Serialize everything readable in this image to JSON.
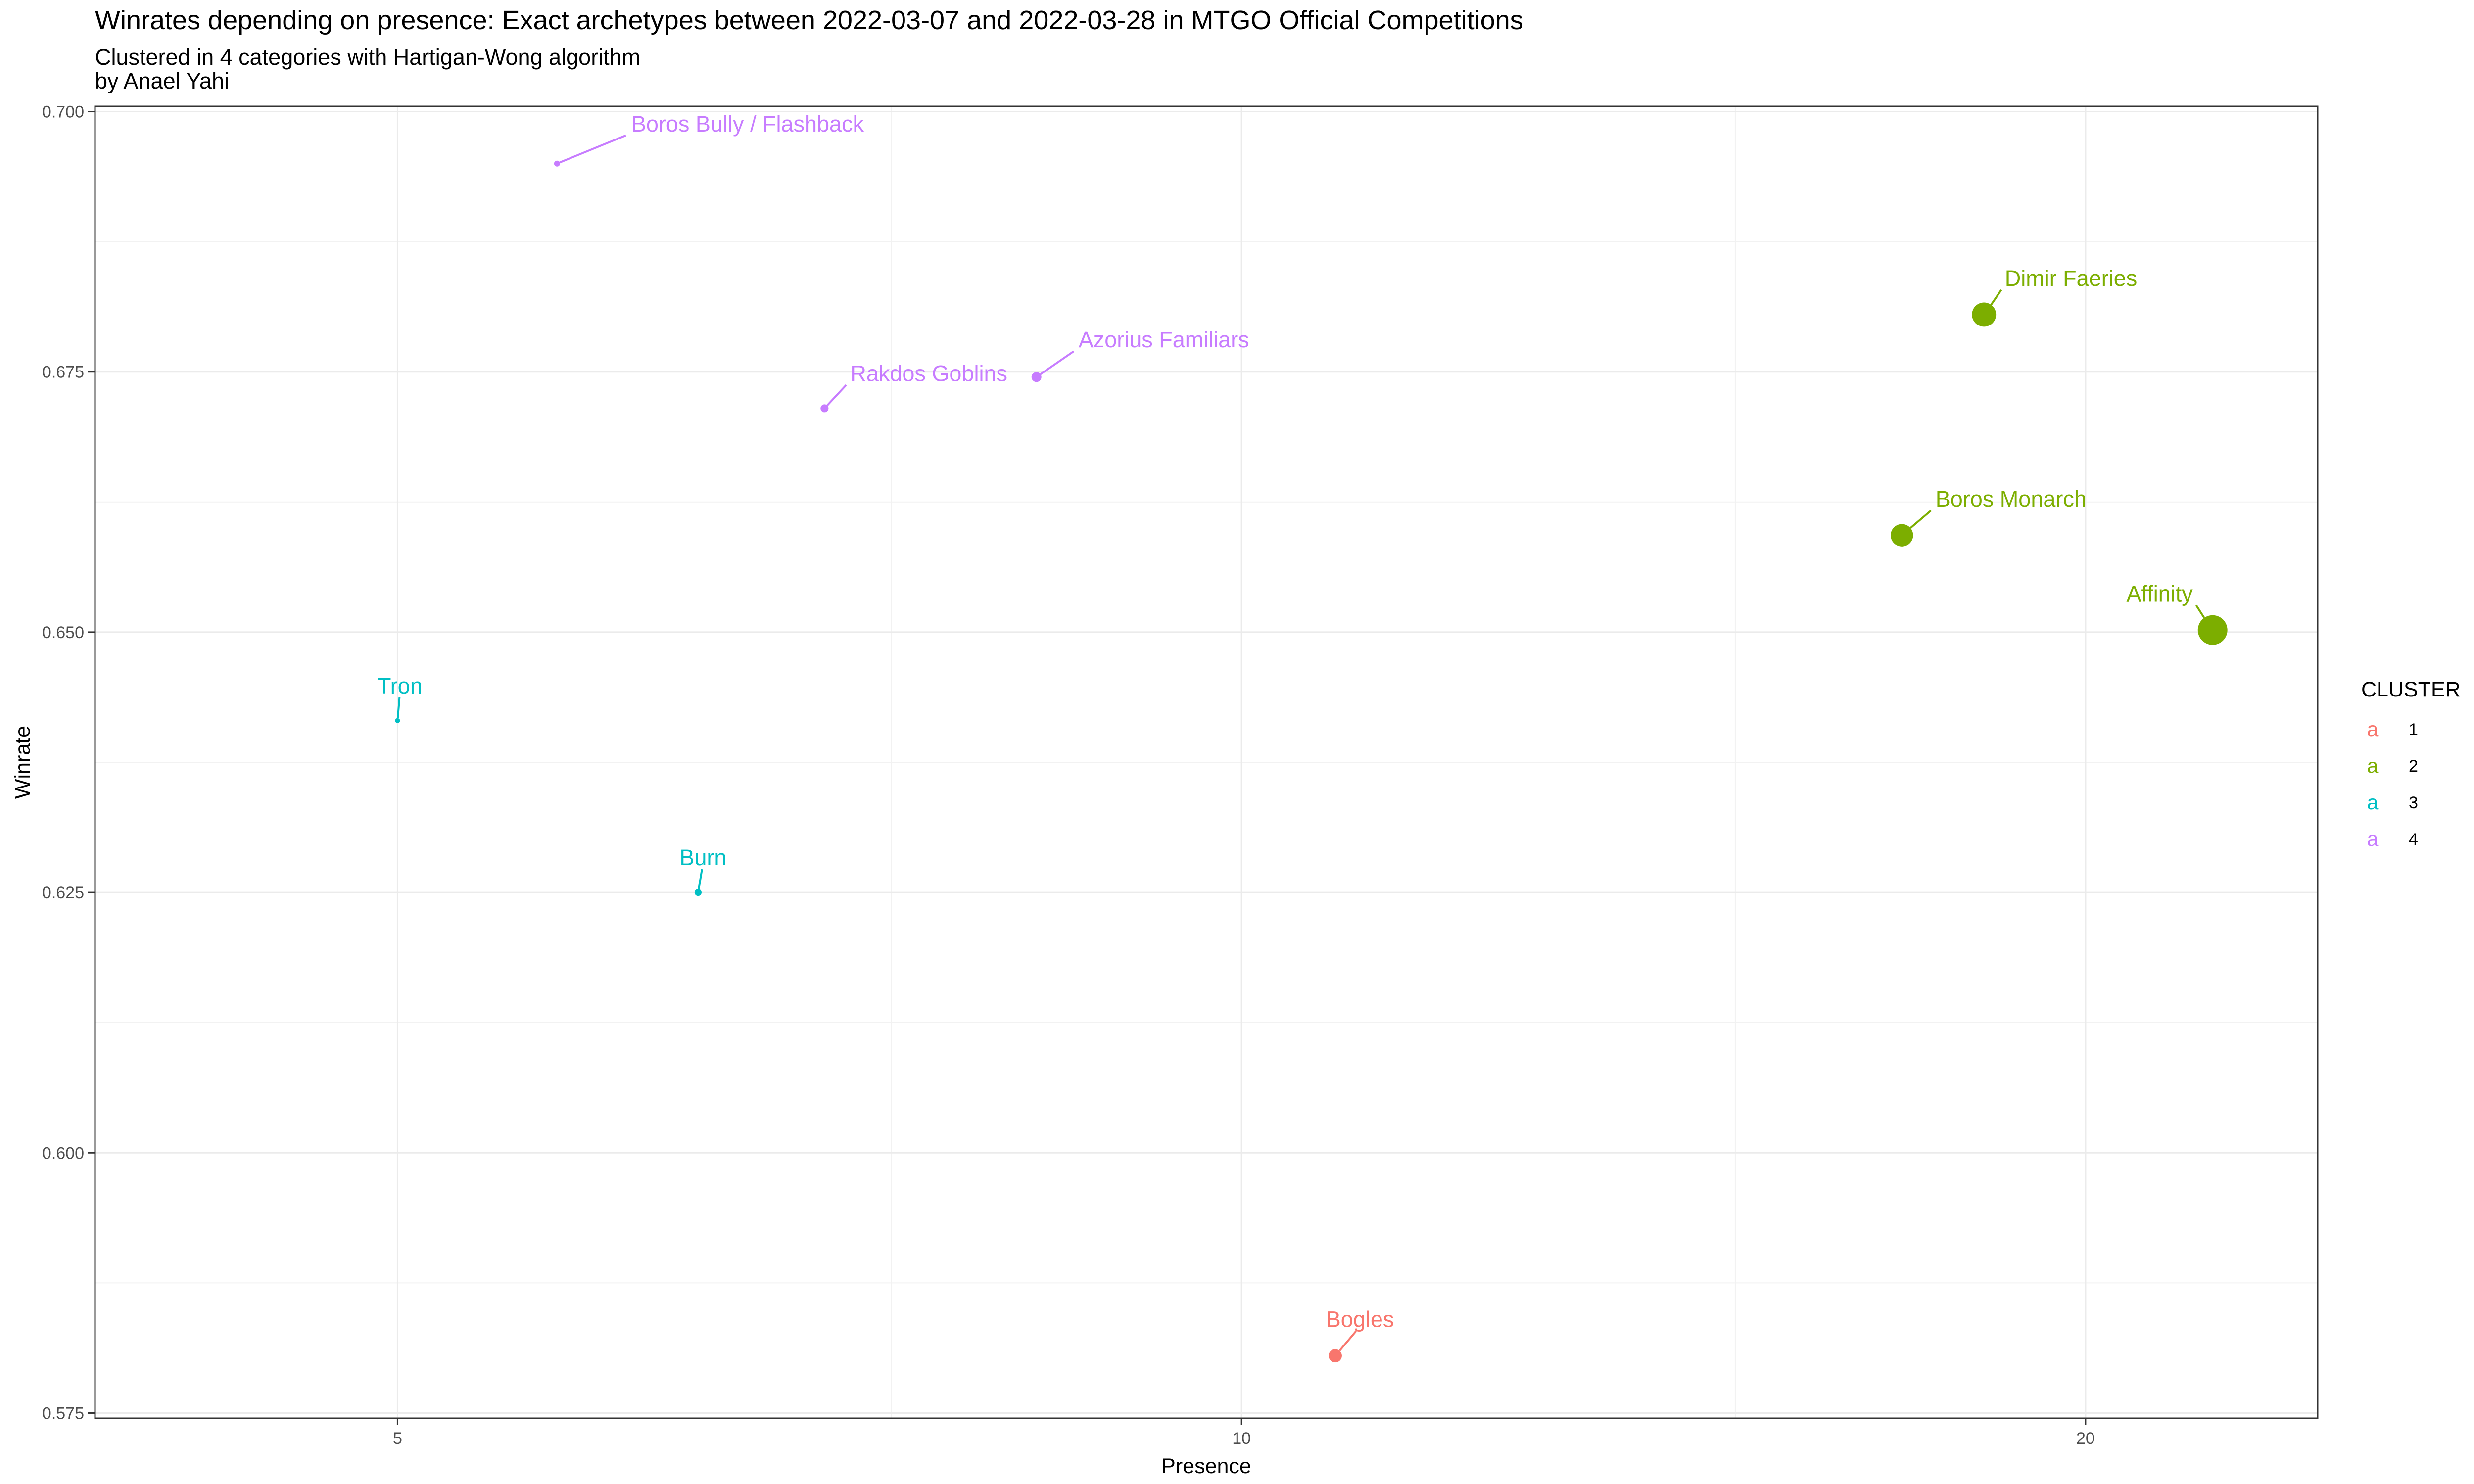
{
  "header": {
    "title": "Winrates depending on presence: Exact archetypes  between 2022-03-07 and 2022-03-28 in MTGO Official Competitions",
    "subtitle": "Clustered in 4 categories with Hartigan-Wong algorithm",
    "byline": "by Anael Yahi"
  },
  "chart_data": {
    "type": "scatter",
    "xlabel": "Presence",
    "ylabel": "Winrate",
    "xlim": [
      3.9,
      24.2
    ],
    "ylim": [
      0.5745,
      0.7005
    ],
    "x_ticks": [
      5,
      10,
      20
    ],
    "x_tick_labels": [
      "5",
      "10",
      "20"
    ],
    "y_ticks": [
      0.575,
      0.6,
      0.625,
      0.65,
      0.675,
      0.7
    ],
    "y_tick_labels": [
      "0.575",
      "0.600",
      "0.625",
      "0.650",
      "0.675",
      "0.700"
    ],
    "x_scale": "log",
    "grid": true,
    "legend": {
      "title": "CLUSTER",
      "placement": "right",
      "key_glyph": "a",
      "items": [
        {
          "label": "1",
          "color": "#F8766D"
        },
        {
          "label": "2",
          "color": "#7CAE00"
        },
        {
          "label": "3",
          "color": "#00BFC4"
        },
        {
          "label": "4",
          "color": "#C77CFF"
        }
      ]
    },
    "points": [
      {
        "label": "Boros Bully / Flashback",
        "x": 5.7,
        "y": 0.695,
        "cluster": "4",
        "size": 5.7
      },
      {
        "label": "Rakdos Goblins",
        "x": 7.1,
        "y": 0.6715,
        "cluster": "4",
        "size": 7.1
      },
      {
        "label": "Azorius Familiars",
        "x": 8.45,
        "y": 0.6745,
        "cluster": "4",
        "size": 8.45
      },
      {
        "label": "Tron",
        "x": 5.0,
        "y": 0.6415,
        "cluster": "3",
        "size": 5.0
      },
      {
        "label": "Burn",
        "x": 6.4,
        "y": 0.625,
        "cluster": "3",
        "size": 6.4
      },
      {
        "label": "Bogles",
        "x": 10.8,
        "y": 0.5805,
        "cluster": "1",
        "size": 10.8
      },
      {
        "label": "Dimir Faeries",
        "x": 18.4,
        "y": 0.6805,
        "cluster": "2",
        "size": 18.4
      },
      {
        "label": "Boros Monarch",
        "x": 17.2,
        "y": 0.6593,
        "cluster": "2",
        "size": 17.2
      },
      {
        "label": "Affinity",
        "x": 22.2,
        "y": 0.6502,
        "cluster": "2",
        "size": 22.2
      }
    ]
  }
}
